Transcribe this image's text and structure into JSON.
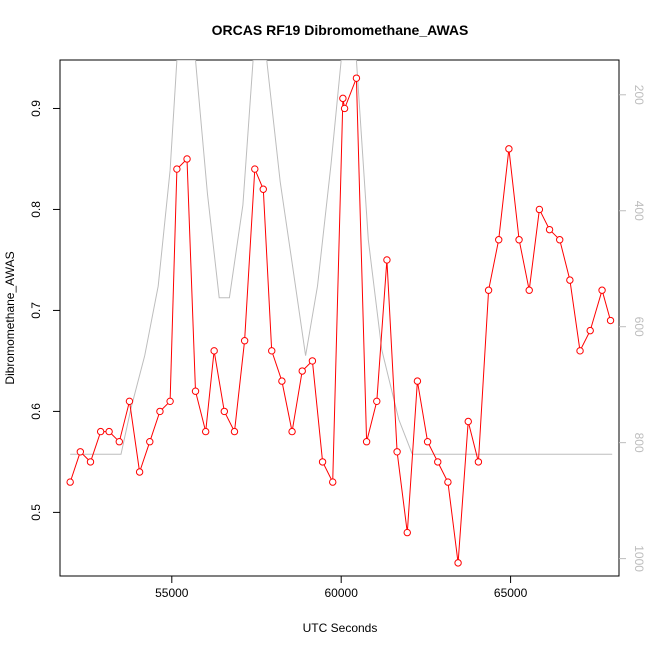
{
  "chart_data": {
    "type": "line",
    "title": "ORCAS RF19 Dibromomethane_AWAS",
    "xlabel": "UTC Seconds",
    "ylabel": "Dibromomethane_AWAS",
    "xlim": [
      51700,
      68200
    ],
    "ylim": [
      0.437,
      0.948
    ],
    "y2lim": [
      1030,
      140
    ],
    "y2_reversed": true,
    "x_ticks": [
      55000,
      60000,
      65000
    ],
    "y_ticks": [
      0.5,
      0.6,
      0.7,
      0.8,
      0.9
    ],
    "y2_ticks": [
      200,
      400,
      600,
      800,
      1000
    ],
    "grid": false,
    "series": [
      {
        "color": "#ff0000",
        "marker": "open-circle",
        "axis": "left",
        "x": [
          52000,
          52300,
          52600,
          52900,
          53150,
          53450,
          53750,
          54050,
          54350,
          54650,
          54950,
          55150,
          55450,
          55700,
          56000,
          56250,
          56550,
          56850,
          57150,
          57450,
          57700,
          57950,
          58250,
          58550,
          58850,
          59150,
          59450,
          59750,
          60050,
          60100,
          60450,
          60750,
          61050,
          61350,
          61650,
          61950,
          62250,
          62550,
          62850,
          63150,
          63450,
          63750,
          64050,
          64350,
          64650,
          64950,
          65250,
          65550,
          65850,
          66150,
          66450,
          66750,
          67050,
          67350,
          67700,
          67950
        ],
        "y": [
          0.53,
          0.56,
          0.55,
          0.58,
          0.58,
          0.57,
          0.61,
          0.54,
          0.57,
          0.6,
          0.61,
          0.84,
          0.85,
          0.62,
          0.58,
          0.66,
          0.6,
          0.58,
          0.67,
          0.84,
          0.82,
          0.66,
          0.63,
          0.58,
          0.64,
          0.65,
          0.55,
          0.53,
          0.91,
          0.9,
          0.93,
          0.57,
          0.61,
          0.75,
          0.56,
          0.48,
          0.63,
          0.57,
          0.55,
          0.53,
          0.45,
          0.59,
          0.55,
          0.72,
          0.77,
          0.86,
          0.77,
          0.72,
          0.8,
          0.78,
          0.77,
          0.73,
          0.66,
          0.68,
          0.72,
          0.69
        ]
      },
      {
        "color": "#bdbdbd",
        "axis": "right",
        "x": [
          52000,
          53500,
          53800,
          54200,
          54600,
          54950,
          55150,
          55700,
          56050,
          56400,
          56700,
          57100,
          57400,
          57800,
          58200,
          58600,
          58950,
          59300,
          59700,
          60000,
          60450,
          60800,
          61200,
          61700,
          62100,
          62400,
          68000
        ],
        "y": [
          820,
          820,
          740,
          650,
          530,
          330,
          140,
          140,
          370,
          550,
          550,
          390,
          140,
          140,
          350,
          510,
          650,
          530,
          320,
          140,
          140,
          450,
          640,
          760,
          820,
          820,
          820
        ]
      }
    ]
  }
}
